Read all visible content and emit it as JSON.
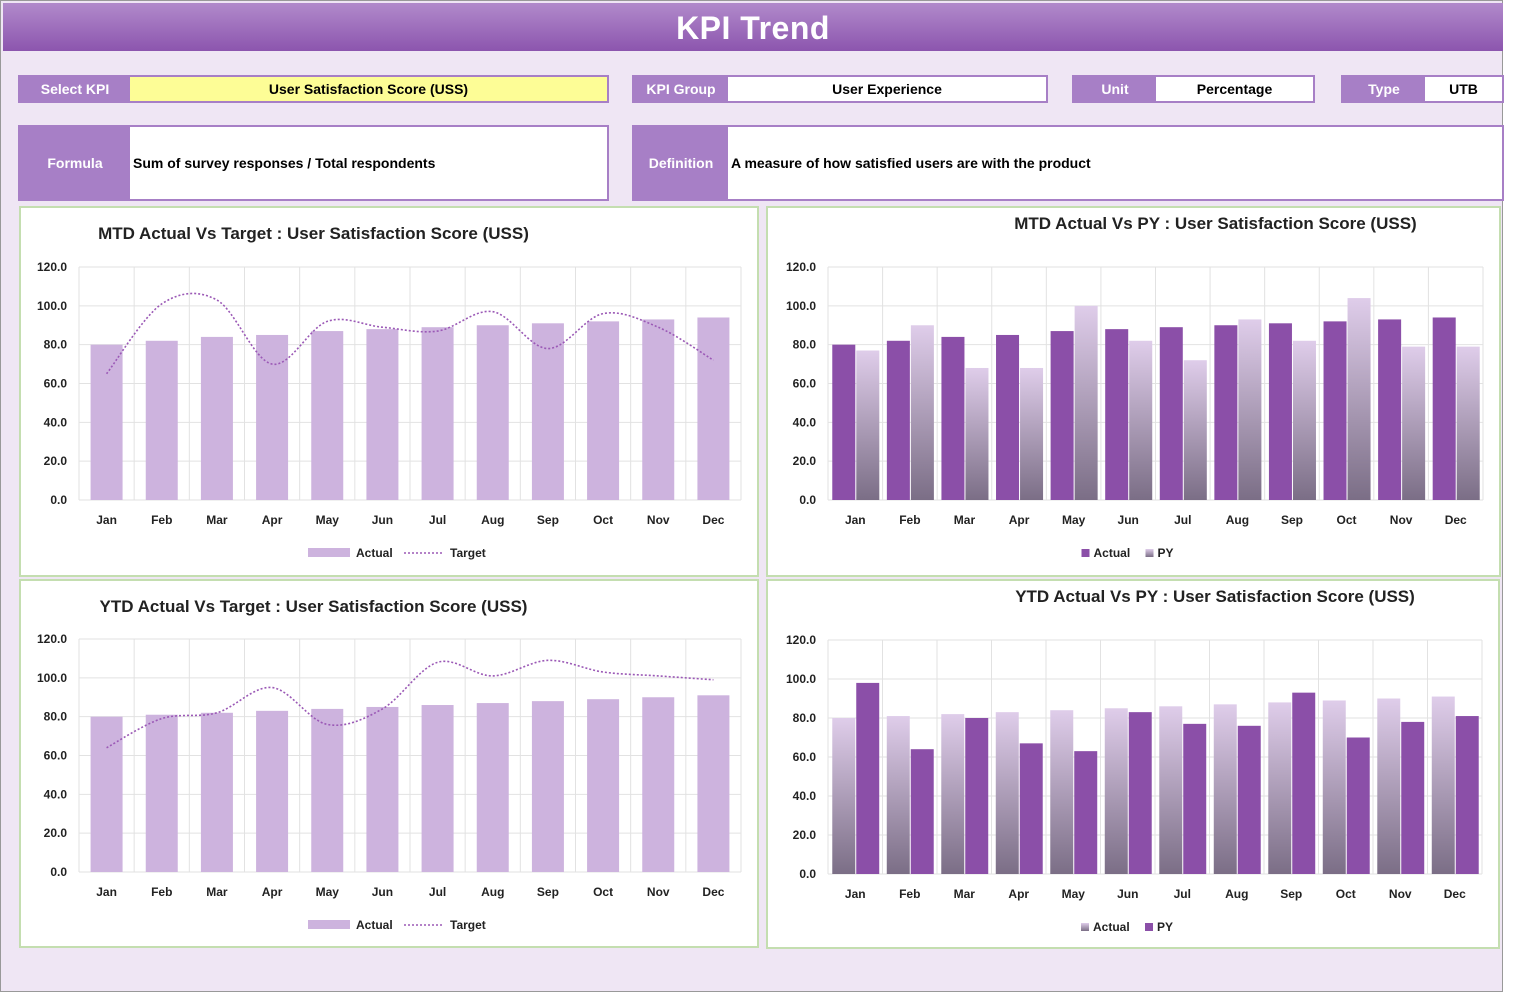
{
  "header": {
    "title": "KPI Trend"
  },
  "fields": {
    "select_kpi": {
      "label": "Select KPI",
      "value": "User Satisfaction Score (USS)"
    },
    "kpi_group": {
      "label": "KPI Group",
      "value": "User Experience"
    },
    "unit": {
      "label": "Unit",
      "value": "Percentage"
    },
    "type": {
      "label": "Type",
      "value": "UTB"
    },
    "formula": {
      "label": "Formula",
      "value": "Sum of survey responses / Total respondents"
    },
    "definition": {
      "label": "Definition",
      "value": "A measure of how satisfied users are with the product"
    }
  },
  "colors": {
    "accent": "#8b4fa8",
    "actual_light": "#cdb3de",
    "target_line": "#9b59b6",
    "header": "#9a66bd",
    "panel_border": "#c4deb0",
    "select_highlight": "#fdfd96"
  },
  "chart_data": [
    {
      "id": "mtd_target",
      "type": "bar+line",
      "title": "MTD Actual Vs Target : User Satisfaction Score (USS)",
      "ylim": [
        0,
        120
      ],
      "yticks": [
        "0.0",
        "20.0",
        "40.0",
        "60.0",
        "80.0",
        "100.0",
        "120.0"
      ],
      "grid": true,
      "legend": "bottom",
      "categories": [
        "Jan",
        "Feb",
        "Mar",
        "Apr",
        "May",
        "Jun",
        "Jul",
        "Aug",
        "Sep",
        "Oct",
        "Nov",
        "Dec"
      ],
      "series": [
        {
          "name": "Actual",
          "kind": "bar",
          "values": [
            80,
            82,
            84,
            85,
            87,
            88,
            89,
            90,
            91,
            92,
            93,
            94
          ]
        },
        {
          "name": "Target",
          "kind": "line",
          "values": [
            65,
            101,
            103,
            70,
            92,
            89,
            87,
            97,
            78,
            96,
            89,
            72
          ]
        }
      ]
    },
    {
      "id": "mtd_py",
      "type": "bar",
      "title": "MTD Actual Vs PY : User Satisfaction Score (USS)",
      "ylim": [
        0,
        120
      ],
      "yticks": [
        "0.0",
        "20.0",
        "40.0",
        "60.0",
        "80.0",
        "100.0",
        "120.0"
      ],
      "grid": true,
      "legend": "bottom",
      "categories": [
        "Jan",
        "Feb",
        "Mar",
        "Apr",
        "May",
        "Jun",
        "Jul",
        "Aug",
        "Sep",
        "Oct",
        "Nov",
        "Dec"
      ],
      "series": [
        {
          "name": "Actual",
          "kind": "solid",
          "values": [
            80,
            82,
            84,
            85,
            87,
            88,
            89,
            90,
            91,
            92,
            93,
            94
          ]
        },
        {
          "name": "PY",
          "kind": "gradient",
          "values": [
            77,
            90,
            68,
            68,
            100,
            82,
            72,
            93,
            82,
            104,
            79,
            79
          ]
        }
      ]
    },
    {
      "id": "ytd_target",
      "type": "bar+line",
      "title": "YTD Actual Vs Target : User Satisfaction Score (USS)",
      "ylim": [
        0,
        120
      ],
      "yticks": [
        "0.0",
        "20.0",
        "40.0",
        "60.0",
        "80.0",
        "100.0",
        "120.0"
      ],
      "grid": true,
      "legend": "bottom",
      "categories": [
        "Jan",
        "Feb",
        "Mar",
        "Apr",
        "May",
        "Jun",
        "Jul",
        "Aug",
        "Sep",
        "Oct",
        "Nov",
        "Dec"
      ],
      "series": [
        {
          "name": "Actual",
          "kind": "bar",
          "values": [
            80,
            81,
            82,
            83,
            84,
            85,
            86,
            87,
            88,
            89,
            90,
            91
          ]
        },
        {
          "name": "Target",
          "kind": "line",
          "values": [
            64,
            79,
            82,
            95,
            76,
            84,
            108,
            101,
            109,
            103,
            101,
            99
          ]
        }
      ]
    },
    {
      "id": "ytd_py",
      "type": "bar",
      "title": "YTD Actual Vs PY : User Satisfaction Score (USS)",
      "ylim": [
        0,
        120
      ],
      "yticks": [
        "0.0",
        "20.0",
        "40.0",
        "60.0",
        "80.0",
        "100.0",
        "120.0"
      ],
      "grid": true,
      "legend": "bottom",
      "categories": [
        "Jan",
        "Feb",
        "Mar",
        "Apr",
        "May",
        "Jun",
        "Jul",
        "Aug",
        "Sep",
        "Oct",
        "Nov",
        "Dec"
      ],
      "series": [
        {
          "name": "Actual",
          "kind": "gradient",
          "values": [
            80,
            81,
            82,
            83,
            84,
            85,
            86,
            87,
            88,
            89,
            90,
            91
          ]
        },
        {
          "name": "PY",
          "kind": "solid",
          "values": [
            98,
            64,
            80,
            67,
            63,
            83,
            77,
            76,
            93,
            70,
            78,
            81
          ]
        }
      ]
    }
  ]
}
